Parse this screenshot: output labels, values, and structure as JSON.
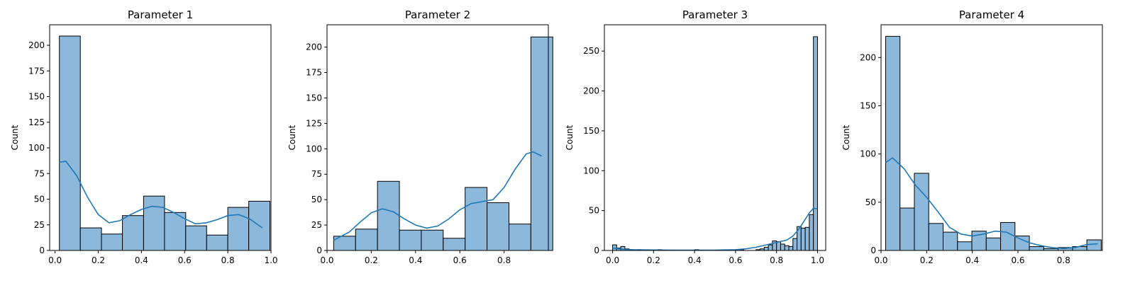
{
  "chart_data": [
    {
      "type": "histogram",
      "title": "Parameter 1",
      "ylabel": "Count",
      "xlim": [
        -0.025,
        1.0
      ],
      "ylim": [
        0,
        220
      ],
      "xticks": [
        "0.0",
        "0.2",
        "0.4",
        "0.6",
        "0.8",
        "1.0"
      ],
      "yticks": [
        "0",
        "25",
        "50",
        "75",
        "100",
        "125",
        "150",
        "175",
        "200"
      ],
      "bins": [
        [
          0.02,
          0.117,
          209
        ],
        [
          0.117,
          0.215,
          22
        ],
        [
          0.215,
          0.312,
          16
        ],
        [
          0.312,
          0.41,
          34
        ],
        [
          0.41,
          0.507,
          53
        ],
        [
          0.507,
          0.605,
          37
        ],
        [
          0.605,
          0.702,
          24
        ],
        [
          0.702,
          0.8,
          15
        ],
        [
          0.8,
          0.897,
          42
        ],
        [
          0.897,
          0.995,
          48
        ]
      ],
      "kde": [
        [
          0.02,
          86
        ],
        [
          0.05,
          87
        ],
        [
          0.1,
          73
        ],
        [
          0.15,
          52
        ],
        [
          0.2,
          35
        ],
        [
          0.25,
          27
        ],
        [
          0.3,
          29
        ],
        [
          0.35,
          35
        ],
        [
          0.4,
          40
        ],
        [
          0.45,
          43
        ],
        [
          0.5,
          42
        ],
        [
          0.55,
          37
        ],
        [
          0.6,
          31
        ],
        [
          0.65,
          26
        ],
        [
          0.7,
          27
        ],
        [
          0.75,
          30
        ],
        [
          0.8,
          34
        ],
        [
          0.85,
          35
        ],
        [
          0.9,
          31
        ],
        [
          0.96,
          22
        ]
      ]
    },
    {
      "type": "histogram",
      "title": "Parameter 2",
      "ylabel": "Count",
      "xlim": [
        0.0,
        1.0
      ],
      "ylim": [
        0,
        222
      ],
      "xticks": [
        "0.0",
        "0.2",
        "0.4",
        "0.6",
        "0.8"
      ],
      "yticks": [
        "0",
        "25",
        "50",
        "75",
        "100",
        "125",
        "150",
        "175",
        "200"
      ],
      "bins": [
        [
          0.03,
          0.129,
          14
        ],
        [
          0.129,
          0.228,
          21
        ],
        [
          0.228,
          0.327,
          68
        ],
        [
          0.327,
          0.426,
          20
        ],
        [
          0.426,
          0.525,
          20
        ],
        [
          0.525,
          0.624,
          12
        ],
        [
          0.624,
          0.723,
          62
        ],
        [
          0.723,
          0.822,
          47
        ],
        [
          0.822,
          0.921,
          26
        ],
        [
          0.921,
          1.02,
          210
        ]
      ],
      "kde": [
        [
          0.03,
          10
        ],
        [
          0.1,
          18
        ],
        [
          0.15,
          28
        ],
        [
          0.2,
          37
        ],
        [
          0.25,
          41
        ],
        [
          0.3,
          38
        ],
        [
          0.35,
          31
        ],
        [
          0.4,
          25
        ],
        [
          0.45,
          22
        ],
        [
          0.5,
          24
        ],
        [
          0.55,
          31
        ],
        [
          0.6,
          40
        ],
        [
          0.65,
          46
        ],
        [
          0.7,
          48
        ],
        [
          0.75,
          50
        ],
        [
          0.8,
          62
        ],
        [
          0.85,
          80
        ],
        [
          0.9,
          95
        ],
        [
          0.93,
          97
        ],
        [
          0.97,
          93
        ]
      ]
    },
    {
      "type": "histogram",
      "title": "Parameter 3",
      "ylabel": "Count",
      "xlim": [
        -0.04,
        1.04
      ],
      "ylim": [
        0,
        283
      ],
      "xticks": [
        "0.0",
        "0.2",
        "0.4",
        "0.6",
        "0.8",
        "1.0"
      ],
      "yticks": [
        "0",
        "50",
        "100",
        "150",
        "200",
        "250"
      ],
      "bins": [
        [
          0.0,
          0.02,
          7
        ],
        [
          0.02,
          0.04,
          3
        ],
        [
          0.04,
          0.06,
          5
        ],
        [
          0.06,
          0.08,
          2
        ],
        [
          0.08,
          0.1,
          1
        ],
        [
          0.12,
          0.14,
          1
        ],
        [
          0.22,
          0.24,
          1
        ],
        [
          0.4,
          0.42,
          1
        ],
        [
          0.62,
          0.64,
          1
        ],
        [
          0.7,
          0.72,
          1
        ],
        [
          0.72,
          0.74,
          2
        ],
        [
          0.74,
          0.76,
          4
        ],
        [
          0.76,
          0.78,
          7
        ],
        [
          0.78,
          0.8,
          12
        ],
        [
          0.8,
          0.82,
          11
        ],
        [
          0.82,
          0.84,
          8
        ],
        [
          0.84,
          0.86,
          6
        ],
        [
          0.86,
          0.88,
          5
        ],
        [
          0.88,
          0.9,
          15
        ],
        [
          0.9,
          0.92,
          30
        ],
        [
          0.92,
          0.94,
          28
        ],
        [
          0.94,
          0.96,
          29
        ],
        [
          0.96,
          0.98,
          45
        ],
        [
          0.98,
          1.0,
          268
        ]
      ],
      "kde": [
        [
          0.0,
          3
        ],
        [
          0.05,
          1.5
        ],
        [
          0.1,
          1
        ],
        [
          0.2,
          0.6
        ],
        [
          0.3,
          0.4
        ],
        [
          0.4,
          0.4
        ],
        [
          0.5,
          0.4
        ],
        [
          0.6,
          1
        ],
        [
          0.65,
          2
        ],
        [
          0.7,
          4
        ],
        [
          0.75,
          7
        ],
        [
          0.8,
          10
        ],
        [
          0.85,
          13
        ],
        [
          0.88,
          18
        ],
        [
          0.9,
          24
        ],
        [
          0.92,
          31
        ],
        [
          0.94,
          39
        ],
        [
          0.96,
          47
        ],
        [
          0.98,
          53
        ],
        [
          1.0,
          52
        ]
      ]
    },
    {
      "type": "histogram",
      "title": "Parameter 4",
      "ylabel": "Count",
      "xlim": [
        0.0,
        0.97
      ],
      "ylim": [
        0,
        234
      ],
      "xticks": [
        "0.0",
        "0.2",
        "0.4",
        "0.6",
        "0.8"
      ],
      "yticks": [
        "0",
        "50",
        "100",
        "150",
        "200"
      ],
      "bins": [
        [
          0.02,
          0.083,
          222
        ],
        [
          0.083,
          0.146,
          44
        ],
        [
          0.146,
          0.209,
          80
        ],
        [
          0.209,
          0.272,
          28
        ],
        [
          0.272,
          0.335,
          19
        ],
        [
          0.335,
          0.398,
          9
        ],
        [
          0.398,
          0.461,
          20
        ],
        [
          0.461,
          0.524,
          13
        ],
        [
          0.524,
          0.587,
          29
        ],
        [
          0.587,
          0.65,
          15
        ],
        [
          0.65,
          0.713,
          4
        ],
        [
          0.713,
          0.776,
          2
        ],
        [
          0.776,
          0.839,
          3
        ],
        [
          0.839,
          0.902,
          4
        ],
        [
          0.902,
          0.965,
          11
        ]
      ],
      "kde": [
        [
          0.02,
          91
        ],
        [
          0.05,
          96
        ],
        [
          0.1,
          85
        ],
        [
          0.15,
          68
        ],
        [
          0.2,
          55
        ],
        [
          0.25,
          40
        ],
        [
          0.3,
          24
        ],
        [
          0.35,
          17
        ],
        [
          0.4,
          15
        ],
        [
          0.45,
          17
        ],
        [
          0.5,
          20
        ],
        [
          0.55,
          19
        ],
        [
          0.6,
          13
        ],
        [
          0.65,
          8
        ],
        [
          0.7,
          5
        ],
        [
          0.75,
          3
        ],
        [
          0.8,
          2
        ],
        [
          0.85,
          3
        ],
        [
          0.9,
          6
        ],
        [
          0.95,
          7
        ]
      ]
    }
  ]
}
